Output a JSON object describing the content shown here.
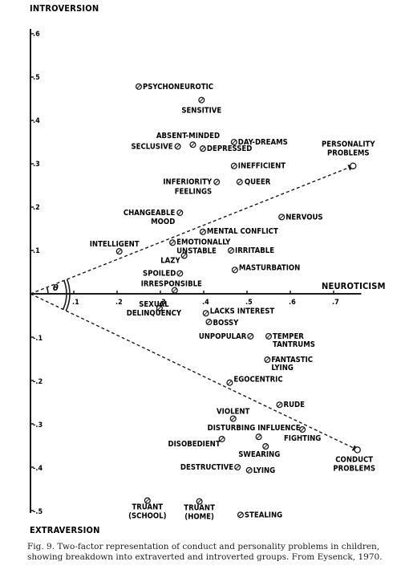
{
  "chart_data": {
    "type": "scatter",
    "xlabel": "NEUROTICISM",
    "ylabel_top": "INTROVERSION",
    "ylabel_bottom": "EXTRAVERSION",
    "xlim": [
      0,
      7.6
    ],
    "ylim": [
      -5,
      6
    ],
    "x_ticks": [
      ".1",
      ".2",
      ".3",
      ".4",
      ".5",
      ".6",
      ".7"
    ],
    "y_ticks_pos": [
      ".1",
      ".2",
      ".3",
      ".4",
      ".5",
      ".6"
    ],
    "y_ticks_neg": [
      "-.1",
      "-.2",
      "-.3",
      "-.4",
      "-.5"
    ],
    "points": [
      {
        "label": "PSYCHONEUROTIC",
        "x": 2.5,
        "y": 4.78
      },
      {
        "label": "SENSITIVE",
        "x": 3.95,
        "y": 4.47
      },
      {
        "label": "ABSENT-MINDED",
        "x": 3.75,
        "y": 3.44
      },
      {
        "label": "DAY-DREAMS",
        "x": 4.7,
        "y": 3.5
      },
      {
        "label": "SECLUSIVE",
        "x": 3.4,
        "y": 3.4
      },
      {
        "label": "DEPRESSED",
        "x": 3.98,
        "y": 3.35
      },
      {
        "label": "INEFFICIENT",
        "x": 4.7,
        "y": 2.95
      },
      {
        "label": "INFERIORITY FEELINGS",
        "x": 4.3,
        "y": 2.58
      },
      {
        "label": "QUEER",
        "x": 4.83,
        "y": 2.58
      },
      {
        "label": "CHANGEABLE MOOD",
        "x": 3.45,
        "y": 1.87
      },
      {
        "label": "NERVOUS",
        "x": 5.8,
        "y": 1.77
      },
      {
        "label": "MENTAL CONFLICT",
        "x": 3.98,
        "y": 1.43
      },
      {
        "label": "INTELLIGENT",
        "x": 2.05,
        "y": 0.98
      },
      {
        "label": "EMOTIONALLY UNSTABLE",
        "x": 3.28,
        "y": 1.18
      },
      {
        "label": "IRRITABLE",
        "x": 4.63,
        "y": 1.0
      },
      {
        "label": "LAZY",
        "x": 3.55,
        "y": 0.88
      },
      {
        "label": "MASTURBATION",
        "x": 4.72,
        "y": 0.55
      },
      {
        "label": "SPOILED",
        "x": 3.45,
        "y": 0.47
      },
      {
        "label": "IRRESPONSIBLE",
        "x": 3.33,
        "y": 0.08
      },
      {
        "label": "SEXUAL DELINQUENCY",
        "x": 2.98,
        "y": -0.33
      },
      {
        "label": "LACKS INTEREST",
        "x": 4.05,
        "y": -0.45
      },
      {
        "label": "BOSSY",
        "x": 4.12,
        "y": -0.65
      },
      {
        "label": "UNPOPULAR",
        "x": 5.08,
        "y": -0.98
      },
      {
        "label": "TEMPER TANTRUMS",
        "x": 5.5,
        "y": -0.98
      },
      {
        "label": "FANTASTIC LYING",
        "x": 5.47,
        "y": -1.52
      },
      {
        "label": "EGOCENTRIC",
        "x": 4.6,
        "y": -2.05
      },
      {
        "label": "RUDE",
        "x": 5.75,
        "y": -2.56
      },
      {
        "label": "VIOLENT",
        "x": 4.68,
        "y": -2.88
      },
      {
        "label": "DISTURBING INFLUENCE",
        "x": 5.27,
        "y": -3.3
      },
      {
        "label": "FIGHTING",
        "x": 6.28,
        "y": -3.13
      },
      {
        "label": "DISOBEDIENT",
        "x": 4.42,
        "y": -3.35
      },
      {
        "label": "SWEARING",
        "x": 5.43,
        "y": -3.52
      },
      {
        "label": "DESTRUCTIVE",
        "x": 4.78,
        "y": -4.0
      },
      {
        "label": "LYING",
        "x": 5.05,
        "y": -4.07
      },
      {
        "label": "TRUANT (SCHOOL)",
        "x": 2.7,
        "y": -4.77
      },
      {
        "label": "TRUANT (HOME)",
        "x": 3.9,
        "y": -4.79
      },
      {
        "label": "STEALING",
        "x": 4.85,
        "y": -5.1
      }
    ],
    "vectors": [
      {
        "label": "PERSONALITY PROBLEMS",
        "x": 7.45,
        "y": 2.95
      },
      {
        "label": "CONDUCT PROBLEMS",
        "x": 7.55,
        "y": -3.6
      }
    ],
    "angle_labels": [
      "θ"
    ]
  },
  "caption": "Fig. 9. Two-factor representation of conduct and personality problems in children, showing breakdown into extraverted and introverted groups. From Eysenck, 1970."
}
